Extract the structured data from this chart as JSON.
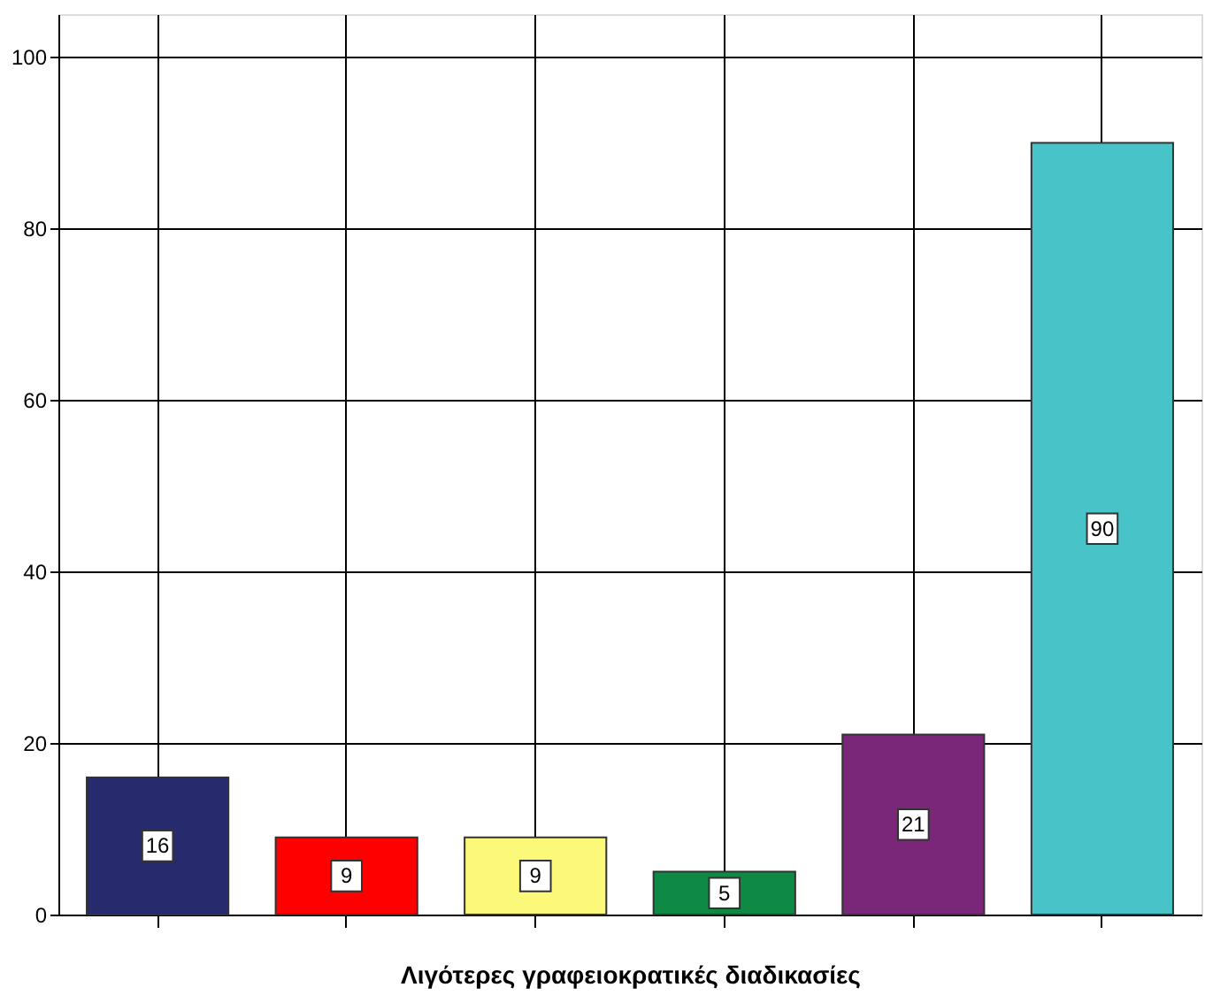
{
  "chart_data": {
    "type": "bar",
    "xlabel": "Λιγότερες γραφειοκρατικές διαδικασίες",
    "categories": [
      null,
      null,
      null,
      null,
      null,
      null
    ],
    "values": [
      16,
      9,
      9,
      5,
      21,
      90
    ],
    "colors": [
      "#282a6e",
      "#ff0000",
      "#fbf87a",
      "#0e8a44",
      "#7b2779",
      "#48c3c7"
    ],
    "ylim": [
      0,
      105
    ],
    "yticks": [
      0,
      20,
      40,
      60,
      80,
      100
    ],
    "grid": true,
    "data_labels": true,
    "tick_labels": "y"
  }
}
